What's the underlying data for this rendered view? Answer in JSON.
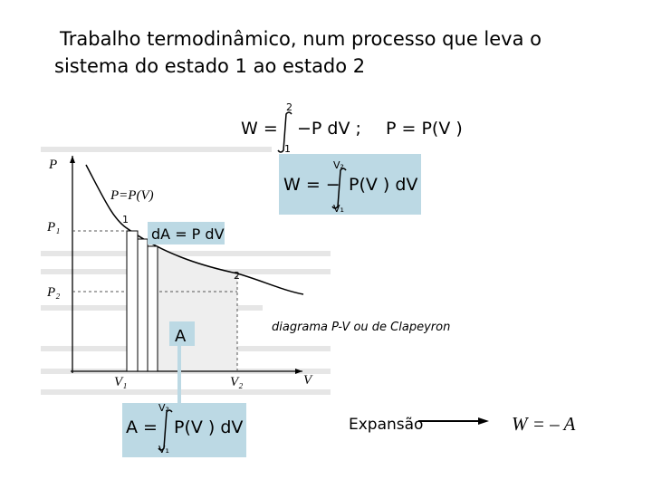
{
  "title": {
    "line1": "Trabalho termodinâmico, num processo que leva o",
    "line2": "sistema do estado 1 ao estado 2"
  },
  "formula_top": {
    "lhs": "W =",
    "upper": "2",
    "lower": "1",
    "integrand": "−P dV ;",
    "rhs": "P = P(V )"
  },
  "formula_box": {
    "lhs": "W = −",
    "upper": "V₂",
    "lower": "V₁",
    "integrand": "P(V ) dV"
  },
  "graph": {
    "p_axis": "P",
    "v_axis": "V",
    "curve": "P=P(V)",
    "p1": "P₁",
    "p2": "P₂",
    "state1": "1",
    "state2": "2",
    "v1": "V₁",
    "v2": "V₂",
    "strip": "dA = P dV",
    "area": "A"
  },
  "formula_area": {
    "lhs": "A =",
    "upper": "V₂",
    "lower": "V₁",
    "integrand": "P(V ) dV"
  },
  "caption": "diagrama P-V ou de Clapeyron",
  "expansion": {
    "label": "Expansão",
    "result": "W = – A"
  }
}
